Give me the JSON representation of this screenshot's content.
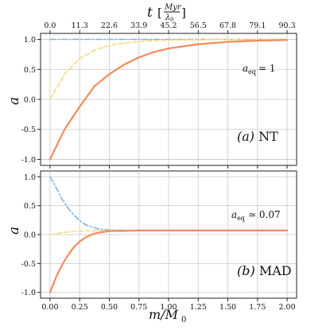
{
  "chart_data": [
    {
      "type": "line",
      "panel_label": "(a) NT",
      "annotation": "a_eq = 1",
      "ylabel": "a",
      "xlabel": "",
      "ylim": [
        -1.1,
        1.1
      ],
      "xlim": [
        -0.08,
        2.08
      ],
      "yticks": [
        1.0,
        0.5,
        0.0,
        -0.5,
        -1.0
      ],
      "ytick_labels": [
        "1.0",
        "0.5",
        "0.0",
        "-0.5",
        "-1.0"
      ],
      "top_axis": {
        "label": "t [Myr / λ0]",
        "tick_labels": [
          "0.0",
          "11.3",
          "22.6",
          "33.9",
          "45.2",
          "56.5",
          "67.8",
          "79.1",
          "90.3"
        ]
      },
      "grid": true,
      "series": [
        {
          "color": "#7fb2d9",
          "style": "dashdot",
          "x": [
            0,
            0.25,
            0.5,
            0.75,
            1.0,
            1.25,
            1.5,
            1.75,
            2.0
          ],
          "y": [
            1.0,
            1.0,
            1.0,
            1.0,
            1.0,
            1.0,
            1.0,
            1.0,
            1.0
          ]
        },
        {
          "color": "#f7d982",
          "style": "dashed",
          "x": [
            0,
            0.125,
            0.25,
            0.375,
            0.5,
            0.625,
            0.75,
            0.875,
            1.0,
            1.25,
            1.5,
            1.75,
            2.0
          ],
          "y": [
            0.0,
            0.43,
            0.68,
            0.82,
            0.9,
            0.94,
            0.965,
            0.98,
            0.99,
            0.995,
            0.998,
            1.0,
            1.0
          ]
        },
        {
          "color": "#f28c5a",
          "style": "solid",
          "x": [
            0,
            0.125,
            0.25,
            0.375,
            0.5,
            0.625,
            0.75,
            0.875,
            1.0,
            1.25,
            1.5,
            1.75,
            2.0
          ],
          "y": [
            -1.0,
            -0.49,
            -0.12,
            0.22,
            0.42,
            0.58,
            0.7,
            0.79,
            0.85,
            0.92,
            0.96,
            0.98,
            0.99
          ]
        }
      ]
    },
    {
      "type": "line",
      "panel_label": "(b) MAD",
      "annotation": "a_eq ≃ 0.07",
      "ylabel": "a",
      "xlabel": "m/M0",
      "ylim": [
        -1.1,
        1.1
      ],
      "xlim": [
        -0.08,
        2.08
      ],
      "yticks": [
        1.0,
        0.5,
        0.0,
        -0.5,
        -1.0
      ],
      "ytick_labels": [
        "1.0",
        "0.5",
        "0.0",
        "-0.5",
        "-1.0"
      ],
      "xticks": [
        0,
        0.25,
        0.5,
        0.75,
        1.0,
        1.25,
        1.5,
        1.75,
        2.0
      ],
      "xtick_labels": [
        "0.00",
        "0.25",
        "0.50",
        "0.75",
        "1.00",
        "1.25",
        "1.50",
        "1.75",
        "2.00"
      ],
      "grid": true,
      "series": [
        {
          "color": "#7fb2d9",
          "style": "dashdot",
          "x": [
            0,
            0.05,
            0.1,
            0.15,
            0.2,
            0.25,
            0.3,
            0.4,
            0.5,
            0.75,
            1.0,
            1.5,
            2.0
          ],
          "y": [
            1.0,
            0.82,
            0.62,
            0.46,
            0.34,
            0.24,
            0.17,
            0.1,
            0.08,
            0.07,
            0.07,
            0.07,
            0.07
          ]
        },
        {
          "color": "#f7d982",
          "style": "dashed",
          "x": [
            0,
            0.05,
            0.1,
            0.15,
            0.2,
            0.3,
            0.4,
            0.5,
            0.75,
            1.0,
            1.5,
            2.0
          ],
          "y": [
            0.0,
            0.015,
            0.03,
            0.045,
            0.055,
            0.065,
            0.068,
            0.07,
            0.07,
            0.07,
            0.07,
            0.07
          ]
        },
        {
          "color": "#f28c5a",
          "style": "solid",
          "x": [
            0,
            0.05,
            0.1,
            0.15,
            0.2,
            0.25,
            0.3,
            0.35,
            0.4,
            0.5,
            0.75,
            1.0,
            1.5,
            2.0
          ],
          "y": [
            -1.0,
            -0.74,
            -0.53,
            -0.36,
            -0.22,
            -0.12,
            -0.05,
            0.0,
            0.03,
            0.06,
            0.07,
            0.07,
            0.07,
            0.07
          ]
        }
      ]
    }
  ]
}
